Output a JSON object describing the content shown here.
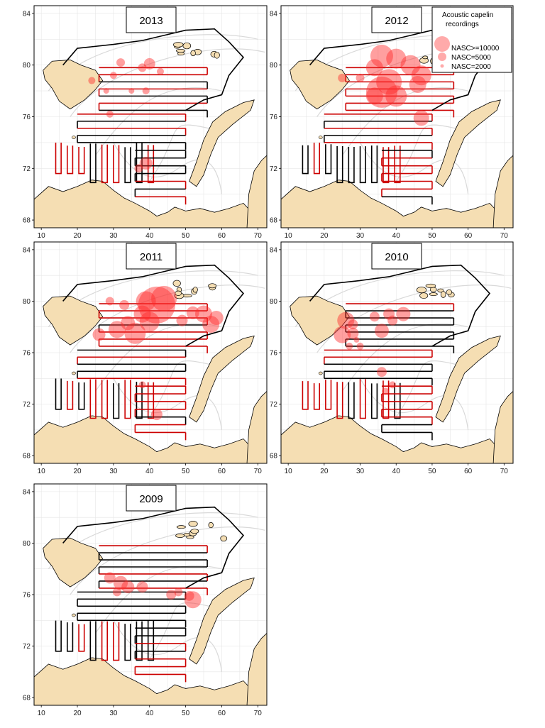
{
  "chart_data": {
    "type": "map-panels",
    "x_ticks": [
      "10",
      "20",
      "30",
      "40",
      "50",
      "60",
      "70"
    ],
    "y_ticks": [
      "68",
      "72",
      "76",
      "80",
      "84"
    ],
    "legend": {
      "title_line1": "Acoustic capelin",
      "title_line2": "recordings",
      "items": [
        "NASC>=10000",
        "NASC=5000",
        "NASC=2000"
      ]
    },
    "colors": {
      "land": "#f5deb3",
      "contour": "#d9d9d9",
      "track_black": "#000000",
      "track_red": "#cc0000",
      "bubble": "#ff2b2b",
      "grid": "#e6e6e6"
    },
    "panels": [
      {
        "year": "2013",
        "bubbles": [
          [
            32,
            80.2,
            6
          ],
          [
            40,
            80.1,
            8
          ],
          [
            38,
            79.8,
            6
          ],
          [
            43,
            79.5,
            5
          ],
          [
            30,
            79.2,
            5
          ],
          [
            24,
            78.8,
            5
          ],
          [
            28,
            78.0,
            4
          ],
          [
            35,
            78.0,
            4
          ],
          [
            39,
            78.0,
            5
          ],
          [
            29,
            76.2,
            5
          ],
          [
            39,
            72.4,
            9
          ],
          [
            37,
            72.0,
            6
          ]
        ]
      },
      {
        "year": "2012",
        "bubbles": [
          [
            36,
            80.7,
            16
          ],
          [
            40,
            80.5,
            14
          ],
          [
            34,
            79.8,
            12
          ],
          [
            38,
            78.7,
            18
          ],
          [
            36,
            77.9,
            22
          ],
          [
            40,
            77.6,
            15
          ],
          [
            44,
            80.0,
            14
          ],
          [
            47,
            79.2,
            14
          ],
          [
            46,
            78.5,
            12
          ],
          [
            34,
            77.6,
            12
          ],
          [
            47,
            75.9,
            11
          ],
          [
            30,
            79.0,
            6
          ],
          [
            25,
            79.0,
            6
          ]
        ]
      },
      {
        "year": "2011",
        "bubbles": [
          [
            42,
            79.7,
            26
          ],
          [
            44,
            80.2,
            18
          ],
          [
            39,
            80.0,
            14
          ],
          [
            38,
            79.0,
            12
          ],
          [
            40,
            78.4,
            14
          ],
          [
            36,
            77.5,
            15
          ],
          [
            31,
            77.8,
            12
          ],
          [
            34,
            78.3,
            10
          ],
          [
            26,
            77.4,
            9
          ],
          [
            52,
            79.1,
            9
          ],
          [
            55,
            79.0,
            12
          ],
          [
            57,
            78.2,
            12
          ],
          [
            58.5,
            78.7,
            10
          ],
          [
            33,
            79.7,
            7
          ],
          [
            29,
            80.0,
            6
          ],
          [
            42,
            71.2,
            8
          ],
          [
            49,
            78.5,
            8
          ],
          [
            38,
            73.5,
            5
          ]
        ]
      },
      {
        "year": "2010",
        "bubbles": [
          [
            26,
            78.5,
            12
          ],
          [
            25,
            77.4,
            12
          ],
          [
            28,
            77.5,
            8
          ],
          [
            28,
            78.2,
            7
          ],
          [
            34,
            78.8,
            7
          ],
          [
            38,
            79.0,
            8
          ],
          [
            42,
            79.0,
            10
          ],
          [
            36,
            77.7,
            10
          ],
          [
            39,
            78.5,
            7
          ],
          [
            36,
            74.5,
            7
          ],
          [
            37,
            73.0,
            5
          ],
          [
            39,
            73.5,
            5
          ],
          [
            27,
            76.5,
            5
          ],
          [
            30,
            76.5,
            5
          ],
          [
            29,
            77.0,
            4
          ]
        ]
      },
      {
        "year": "2009",
        "bubbles": [
          [
            29,
            77.3,
            8
          ],
          [
            32,
            76.9,
            10
          ],
          [
            34,
            76.6,
            9
          ],
          [
            31,
            76.2,
            6
          ],
          [
            38,
            76.6,
            8
          ],
          [
            46,
            76.0,
            7
          ],
          [
            52,
            75.6,
            12
          ],
          [
            51,
            75.9,
            7
          ],
          [
            48,
            76.2,
            6
          ]
        ]
      }
    ]
  }
}
